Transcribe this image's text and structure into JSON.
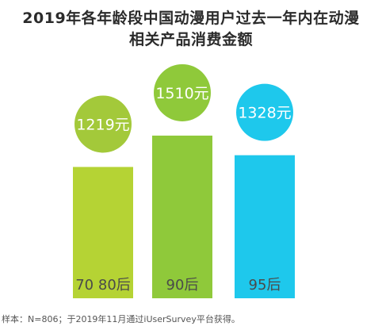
{
  "chart_data": {
    "type": "bar",
    "title_lines": [
      "2019年各年龄段中国动漫用户过去一年内在动漫",
      "相关产品消费金额"
    ],
    "categories": [
      "70 80后",
      "90后",
      "95后"
    ],
    "values": [
      1219,
      1510,
      1328
    ],
    "value_labels": [
      "1219元",
      "1510元",
      "1328元"
    ],
    "colors": {
      "bar": [
        "#b5d334",
        "#8fc93a",
        "#1ec8ec"
      ],
      "bubble": [
        "#a3c93a",
        "#8fc93a",
        "#1ec8ec"
      ]
    },
    "grid": false,
    "legend": "none"
  },
  "footnote": "样本：N=806；于2019年11月通过iUserSurvey平台获得。"
}
